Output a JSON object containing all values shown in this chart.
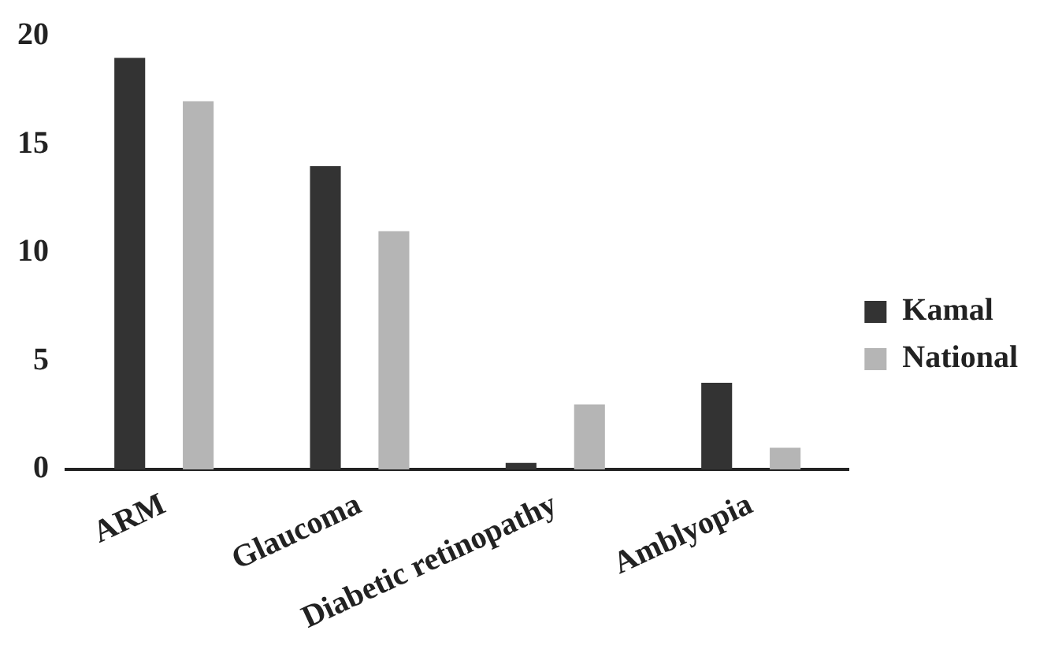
{
  "chart_data": {
    "type": "bar",
    "categories": [
      "ARM",
      "Glaucoma",
      "Diabetic retinopathy",
      "Amblyopia"
    ],
    "series": [
      {
        "name": "Kamal",
        "color": "#333333",
        "values": [
          19,
          14,
          0.3,
          4
        ]
      },
      {
        "name": "National",
        "color": "#b5b5b5",
        "values": [
          17,
          11,
          3,
          1
        ]
      }
    ],
    "ylim": [
      0,
      20
    ],
    "yticks": [
      0,
      5,
      10,
      15,
      20
    ],
    "grid": false,
    "legend": "right"
  }
}
